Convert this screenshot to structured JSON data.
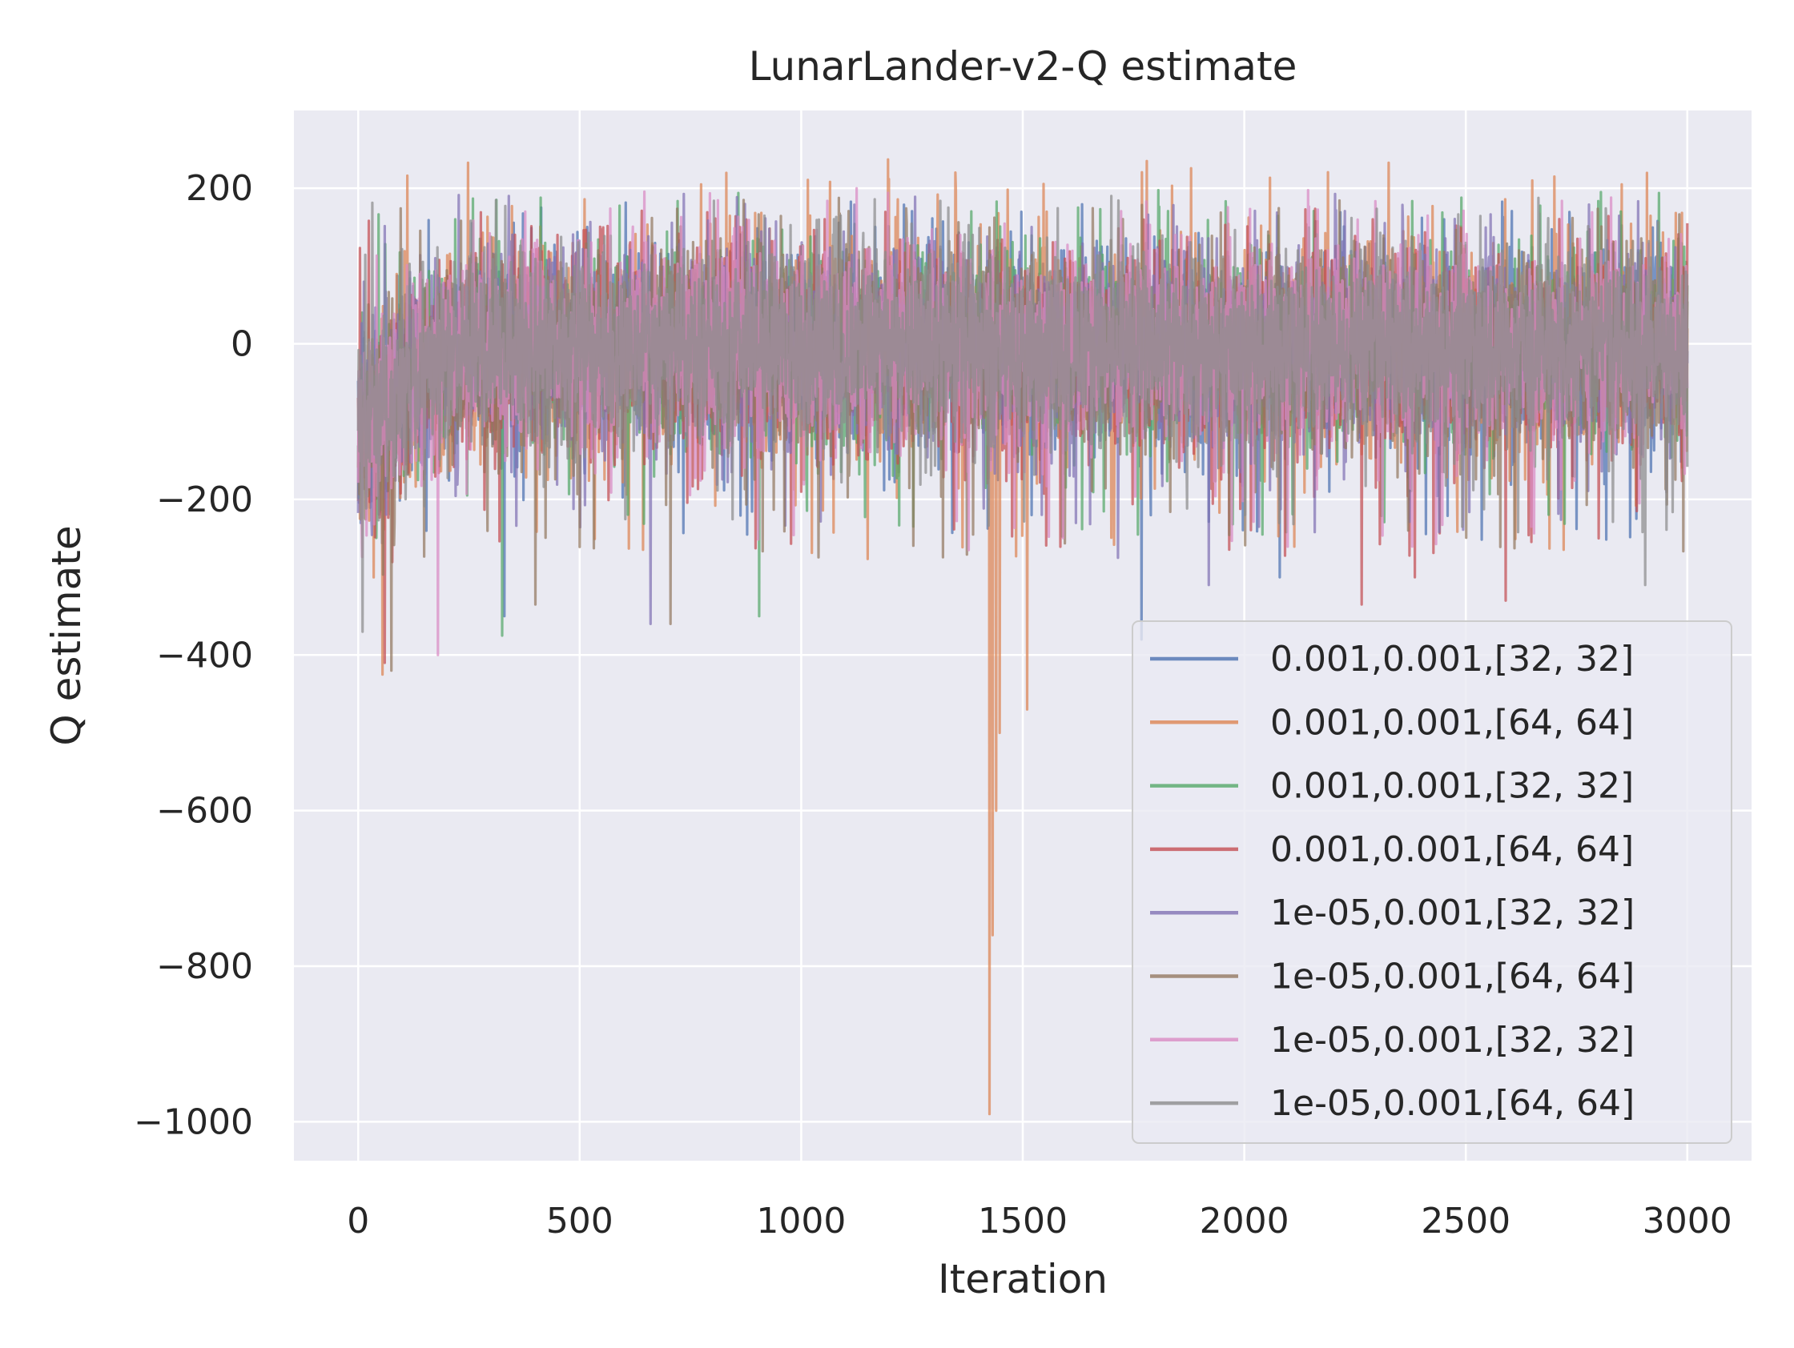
{
  "chart_data": {
    "type": "line",
    "title": "LunarLander-v2-Q estimate",
    "xlabel": "Iteration",
    "ylabel": "Q estimate",
    "xlim": [
      -145,
      3145
    ],
    "ylim": [
      -1050,
      300
    ],
    "xticks": [
      0,
      500,
      1000,
      1500,
      2000,
      2500,
      3000
    ],
    "xtick_labels": [
      "0",
      "500",
      "1000",
      "1500",
      "2000",
      "2500",
      "3000"
    ],
    "yticks": [
      200,
      0,
      -200,
      -400,
      -600,
      -800,
      -1000
    ],
    "ytick_labels": [
      "200",
      "0",
      "−200",
      "−400",
      "−600",
      "−800",
      "−1000"
    ],
    "grid": true,
    "legend_position": "lower-right",
    "x_range": [
      0,
      3000
    ],
    "series": [
      {
        "name": "0.001,0.001,[32, 32]",
        "color": "#4c72b0",
        "start": -120,
        "plateau": -5,
        "spread": 58,
        "up_limit": 185,
        "down_limit": -385,
        "spikes": [
          [
            330,
            -350
          ],
          [
            1768,
            -380
          ],
          [
            2080,
            -300
          ],
          [
            1520,
            -220
          ]
        ]
      },
      {
        "name": "0.001,0.001,[64, 64]",
        "color": "#dd8452",
        "start": -130,
        "plateau": -2,
        "spread": 62,
        "up_limit": 240,
        "down_limit": -425,
        "spikes": [
          [
            55,
            -425
          ],
          [
            1425,
            -990
          ],
          [
            1432,
            -760
          ],
          [
            1440,
            -600
          ],
          [
            1448,
            -500
          ],
          [
            1510,
            -470
          ],
          [
            1780,
            235
          ],
          [
            2650,
            210
          ],
          [
            2700,
            215
          ]
        ]
      },
      {
        "name": "0.001,0.001,[32, 32]",
        "color": "#55a868",
        "start": -120,
        "plateau": -5,
        "spread": 58,
        "up_limit": 200,
        "down_limit": -375,
        "spikes": [
          [
            325,
            -375
          ],
          [
            905,
            -350
          ],
          [
            2805,
            195
          ],
          [
            2850,
            170
          ]
        ]
      },
      {
        "name": "0.001,0.001,[64, 64]",
        "color": "#c44e52",
        "start": -125,
        "plateau": -8,
        "spread": 60,
        "up_limit": 175,
        "down_limit": -415,
        "spikes": [
          [
            60,
            -410
          ],
          [
            2265,
            -335
          ],
          [
            2385,
            -300
          ],
          [
            2590,
            -330
          ],
          [
            2800,
            -250
          ]
        ]
      },
      {
        "name": "1e-05,0.001,[32, 32]",
        "color": "#8172b3",
        "start": -120,
        "plateau": -5,
        "spread": 58,
        "up_limit": 195,
        "down_limit": -370,
        "spikes": [
          [
            660,
            -360
          ],
          [
            1715,
            -275
          ],
          [
            1920,
            -310
          ],
          [
            340,
            190
          ]
        ]
      },
      {
        "name": "1e-05,0.001,[64, 64]",
        "color": "#937860",
        "start": -125,
        "plateau": -5,
        "spread": 58,
        "up_limit": 190,
        "down_limit": -420,
        "spikes": [
          [
            75,
            -420
          ],
          [
            400,
            -335
          ],
          [
            705,
            -360
          ],
          [
            870,
            185
          ]
        ]
      },
      {
        "name": "1e-05,0.001,[32, 32]",
        "color": "#da8bc3",
        "start": -120,
        "plateau": -3,
        "spread": 58,
        "up_limit": 200,
        "down_limit": -400,
        "spikes": [
          [
            180,
            -400
          ],
          [
            1125,
            200
          ],
          [
            1378,
            -265
          ]
        ]
      },
      {
        "name": "1e-05,0.001,[64, 64]",
        "color": "#8c8c8c",
        "start": -120,
        "plateau": -5,
        "spread": 55,
        "up_limit": 190,
        "down_limit": -370,
        "spikes": [
          [
            10,
            -370
          ],
          [
            2905,
            -310
          ],
          [
            1700,
            190
          ]
        ]
      }
    ]
  }
}
